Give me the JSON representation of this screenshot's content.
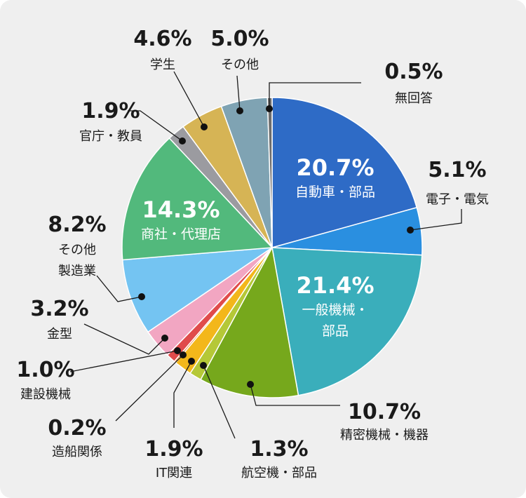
{
  "chart_data": {
    "type": "pie",
    "start": "12 o'clock",
    "direction": "clockwise",
    "slices": [
      {
        "label": "自動車・部品",
        "pct_text": "20.7%",
        "value": 20.7,
        "color": "#2e6bc6"
      },
      {
        "label": "電子・電気",
        "pct_text": "5.1%",
        "value": 5.1,
        "color": "#2a8fe0"
      },
      {
        "label": "一般機械・部品",
        "pct_text": "21.4%",
        "value": 21.4,
        "color": "#3aaebb"
      },
      {
        "label": "精密機械・機器",
        "pct_text": "10.7%",
        "value": 10.7,
        "color": "#76a81c"
      },
      {
        "label": "航空機・部品",
        "pct_text": "1.3%",
        "value": 1.3,
        "color": "#b5c837"
      },
      {
        "label": "IT関連",
        "pct_text": "1.9%",
        "value": 1.9,
        "color": "#f3b71b"
      },
      {
        "label": "造船関係",
        "pct_text": "0.2%",
        "value": 0.2,
        "color": "#e97a2e"
      },
      {
        "label": "建設機械",
        "pct_text": "1.0%",
        "value": 1.0,
        "color": "#e04b4b"
      },
      {
        "label": "金型",
        "pct_text": "3.2%",
        "value": 3.2,
        "color": "#f2a6c2"
      },
      {
        "label": "その他製造業",
        "pct_text": "8.2%",
        "value": 8.2,
        "color": "#74c4f2"
      },
      {
        "label": "商社・代理店",
        "pct_text": "14.3%",
        "value": 14.3,
        "color": "#52b97c"
      },
      {
        "label": "官庁・教員",
        "pct_text": "1.9%",
        "value": 1.9,
        "color": "#9b9ba0"
      },
      {
        "label": "学生",
        "pct_text": "4.6%",
        "value": 4.6,
        "color": "#d6b455"
      },
      {
        "label": "その他",
        "pct_text": "5.0%",
        "value": 5.0,
        "color": "#7fa3b3"
      },
      {
        "label": "無回答",
        "pct_text": "0.5%",
        "value": 0.5,
        "color": "#6d6d6d"
      }
    ]
  }
}
